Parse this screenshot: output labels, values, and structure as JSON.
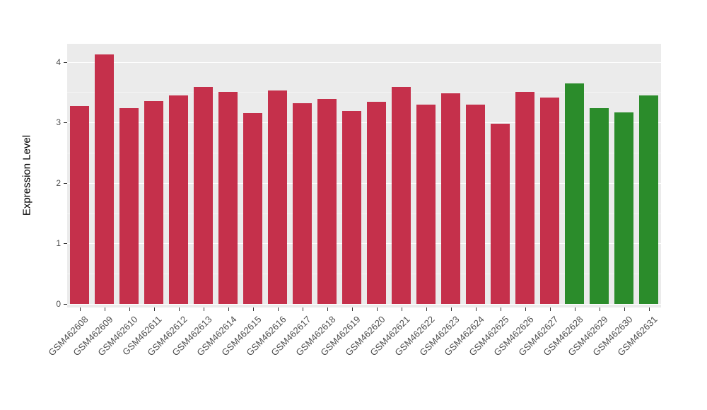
{
  "chart_data": {
    "type": "bar",
    "title": "",
    "xlabel": "",
    "ylabel": "Expression Level",
    "ylim": [
      0,
      4.3
    ],
    "yticks": [
      0,
      1,
      2,
      3,
      4
    ],
    "minor_grid_step": 0.5,
    "grid": true,
    "legend_position": "none",
    "categories": [
      "GSM462608",
      "GSM462609",
      "GSM462610",
      "GSM462611",
      "GSM462612",
      "GSM462613",
      "GSM462614",
      "GSM462615",
      "GSM462616",
      "GSM462617",
      "GSM462618",
      "GSM462619",
      "GSM462620",
      "GSM462621",
      "GSM462622",
      "GSM462623",
      "GSM462624",
      "GSM462625",
      "GSM462626",
      "GSM462627",
      "GSM462628",
      "GSM462629",
      "GSM462630",
      "GSM462631"
    ],
    "values": [
      3.27,
      4.13,
      3.24,
      3.35,
      3.45,
      3.59,
      3.5,
      3.16,
      3.53,
      3.32,
      3.39,
      3.19,
      3.34,
      3.59,
      3.29,
      3.48,
      3.3,
      2.98,
      3.5,
      3.41,
      3.64,
      3.24,
      3.17,
      3.45
    ],
    "bar_groups": [
      "red",
      "red",
      "red",
      "red",
      "red",
      "red",
      "red",
      "red",
      "red",
      "red",
      "red",
      "red",
      "red",
      "red",
      "red",
      "red",
      "red",
      "red",
      "red",
      "red",
      "green",
      "green",
      "green",
      "green"
    ],
    "group_colors": {
      "red": "#C5304B",
      "green": "#2B8C2B"
    }
  },
  "style_colors": {
    "panel_bg": "#EBEBEB",
    "grid_major": "#FFFFFF",
    "grid_minor": "#F5F5F5",
    "tick_text": "#4D4D4D",
    "axis_title": "#000000",
    "tick_mark": "#333333",
    "background": "#FFFFFF"
  }
}
